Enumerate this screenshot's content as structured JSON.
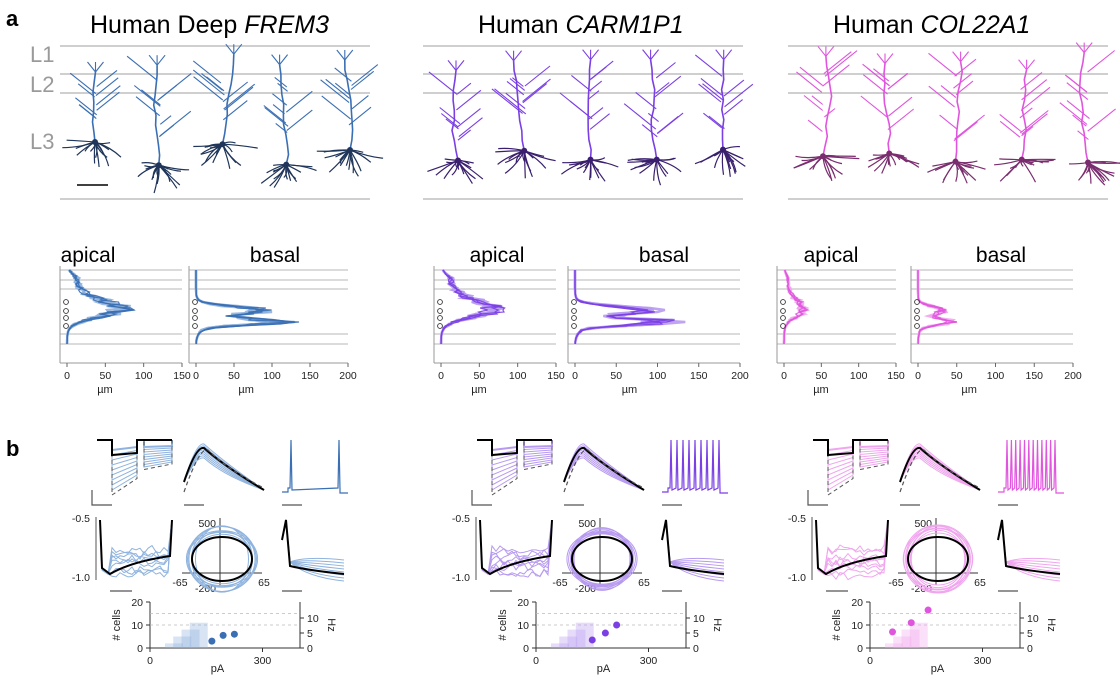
{
  "panels": {
    "a": "a",
    "b": "b"
  },
  "layers": [
    "L1",
    "L2",
    "L3"
  ],
  "columns": [
    {
      "id": "frem3",
      "title_prefix": "Human Deep ",
      "title_italic": "FREM3",
      "color": "#3a6fb4",
      "dark": "#1f3559",
      "light": "#8fb3de"
    },
    {
      "id": "carm1p1",
      "title_prefix": "Human ",
      "title_italic": "CARM1P1",
      "color": "#7b3fe4",
      "dark": "#3a1f6e",
      "light": "#b79af0"
    },
    {
      "id": "col22a1",
      "title_prefix": "Human ",
      "title_italic": "COL22A1",
      "color": "#e055de",
      "dark": "#7a2d6e",
      "light": "#f0a6ee"
    }
  ],
  "distributions": {
    "apical_label": "apical",
    "basal_label": "basal",
    "unit": "µm",
    "apical_ticks": [
      "0",
      "50",
      "100",
      "150"
    ],
    "basal_ticks": [
      "0",
      "50",
      "100",
      "150",
      "200"
    ]
  },
  "ephys": {
    "y_ticks": [
      "-0.5",
      "-1.0"
    ],
    "phase_x_ticks": [
      "-65",
      "65"
    ],
    "phase_y_ticks": [
      "500",
      "-200"
    ]
  },
  "fi_plot": {
    "ylabel": "# cells",
    "y_ticks": [
      "0",
      "10",
      "20"
    ],
    "y2label": "Hz",
    "y2_ticks": [
      "0",
      "5",
      "10"
    ],
    "x_ticks": [
      "0",
      "300"
    ],
    "xlabel": "pA"
  },
  "chart_data": [
    {
      "type": "scatter",
      "series": [
        {
          "name": "Human Deep FREM3",
          "x": [
            165,
            195,
            225
          ],
          "y": [
            3,
            5.5,
            6
          ]
        }
      ],
      "xlabel": "pA",
      "ylabel": "# cells",
      "xlim": [
        0,
        400
      ],
      "ylim": [
        0,
        20
      ]
    },
    {
      "type": "scatter",
      "series": [
        {
          "name": "Human CARM1P1",
          "x": [
            150,
            185,
            215
          ],
          "y": [
            3.5,
            6.5,
            10
          ]
        }
      ],
      "xlabel": "pA",
      "ylabel": "# cells",
      "xlim": [
        0,
        400
      ],
      "ylim": [
        0,
        20
      ]
    },
    {
      "type": "scatter",
      "series": [
        {
          "name": "Human COL22A1",
          "x": [
            60,
            110,
            155
          ],
          "y": [
            7,
            11,
            16.5
          ]
        }
      ],
      "xlabel": "pA",
      "ylabel": "# cells",
      "xlim": [
        0,
        400
      ],
      "ylim": [
        0,
        20
      ]
    }
  ]
}
